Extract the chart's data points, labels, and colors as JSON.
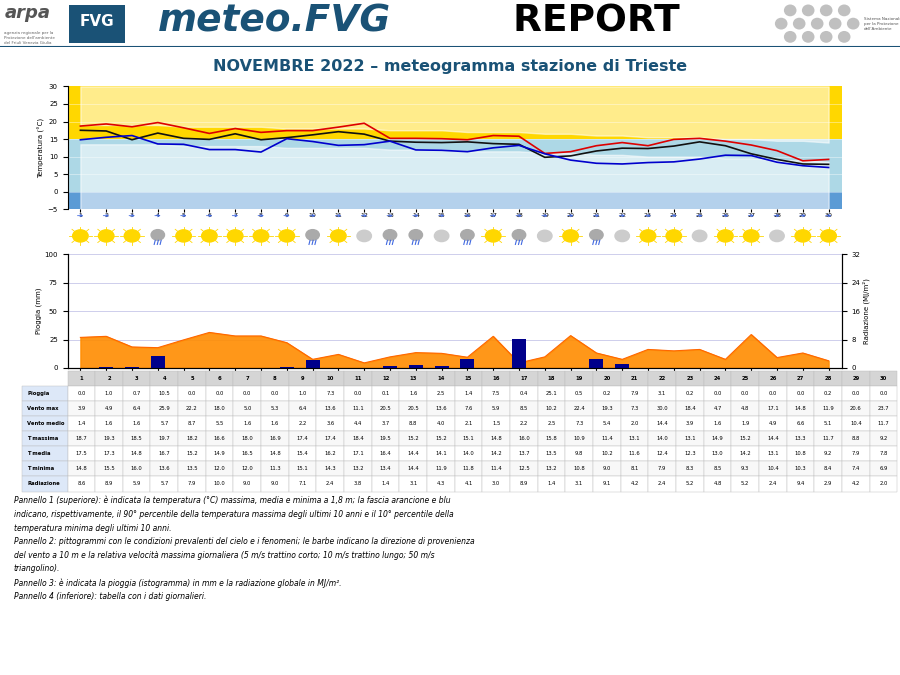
{
  "title": "NOVEMBRE 2022 – meteogramma stazione di Trieste",
  "days": [
    1,
    2,
    3,
    4,
    5,
    6,
    7,
    8,
    9,
    10,
    11,
    12,
    13,
    14,
    15,
    16,
    17,
    18,
    19,
    20,
    21,
    22,
    23,
    24,
    25,
    26,
    27,
    28,
    29,
    30
  ],
  "t_massima": [
    18.7,
    19.3,
    18.5,
    19.7,
    18.2,
    16.6,
    18.0,
    16.9,
    17.4,
    17.4,
    18.4,
    19.5,
    15.2,
    15.2,
    15.1,
    14.8,
    16.0,
    15.8,
    10.9,
    11.4,
    13.1,
    14.0,
    13.1,
    14.9,
    15.2,
    14.4,
    13.3,
    11.7,
    8.8,
    9.2
  ],
  "t_media": [
    17.5,
    17.3,
    14.8,
    16.7,
    15.2,
    14.9,
    16.5,
    14.8,
    15.4,
    16.2,
    17.1,
    16.4,
    14.4,
    14.1,
    14.0,
    14.2,
    13.7,
    13.5,
    9.8,
    10.2,
    11.6,
    12.4,
    12.3,
    13.0,
    14.2,
    13.1,
    10.8,
    9.2,
    7.9,
    7.8
  ],
  "t_minima": [
    14.8,
    15.5,
    16.0,
    13.6,
    13.5,
    12.0,
    12.0,
    11.3,
    15.1,
    14.3,
    13.2,
    13.4,
    14.4,
    11.9,
    11.8,
    11.4,
    12.5,
    13.2,
    10.8,
    9.0,
    8.1,
    7.9,
    8.3,
    8.5,
    9.3,
    10.4,
    10.3,
    8.4,
    7.4,
    6.9
  ],
  "t_max_clim": [
    19.0,
    19.0,
    19.0,
    19.0,
    18.5,
    18.5,
    18.5,
    18.5,
    18.0,
    18.0,
    18.0,
    18.0,
    17.5,
    17.5,
    17.5,
    17.0,
    17.0,
    17.0,
    16.5,
    16.5,
    16.0,
    16.0,
    15.5,
    15.5,
    15.5,
    15.0,
    15.0,
    14.5,
    14.5,
    14.0
  ],
  "t_min_clim": [
    13.5,
    13.5,
    13.5,
    13.5,
    13.0,
    13.0,
    13.0,
    13.0,
    12.5,
    12.5,
    12.5,
    12.5,
    12.0,
    12.0,
    12.0,
    11.5,
    11.5,
    11.5,
    11.0,
    11.0,
    10.5,
    10.5,
    10.0,
    10.0,
    10.0,
    9.5,
    9.5,
    9.0,
    9.0,
    8.5
  ],
  "rain": [
    0.0,
    1.0,
    0.7,
    10.5,
    0.0,
    0.0,
    0.0,
    0.0,
    1.0,
    7.3,
    0.0,
    0.1,
    1.6,
    2.5,
    1.4,
    7.5,
    0.4,
    25.1,
    0.5,
    0.2,
    7.9,
    3.1,
    0.2,
    0.0,
    0.0,
    0.0,
    0.0,
    0.2,
    0.0,
    0.0
  ],
  "radiation": [
    8.6,
    8.9,
    5.9,
    5.7,
    7.9,
    10.0,
    9.0,
    9.0,
    7.1,
    2.4,
    3.8,
    1.4,
    3.1,
    4.3,
    4.1,
    3.0,
    8.9,
    1.4,
    3.1,
    9.1,
    4.2,
    2.4,
    5.2,
    4.8,
    5.2,
    2.4,
    9.4,
    2.9,
    4.2,
    2.0
  ],
  "bg_yellow": "#FFD700",
  "bg_lightblue": "#add8e6",
  "bg_blue": "#5b9bd5",
  "line_red": "#DD0000",
  "line_black": "#111111",
  "line_blue": "#0000CC",
  "orange_fill": "#FF8C00",
  "blue_bar": "#00008B",
  "pioggia_row": [
    "0.0",
    "1.0",
    "0.7",
    "10.5",
    "0.0",
    "0.0",
    "0.0",
    "0.0",
    "1.0",
    "7.3",
    "0.0",
    "0.1",
    "1.6",
    "2.5",
    "1.4",
    "7.5",
    "0.4",
    "25.1",
    "0.5",
    "0.2",
    "7.9",
    "3.1",
    "0.2",
    "0.0",
    "0.0",
    "0.0",
    "0.0",
    "0.2",
    "0.0",
    "0.0"
  ],
  "vento_max_row": [
    "3.9",
    "4.9",
    "6.4",
    "25.9",
    "22.2",
    "18.0",
    "5.0",
    "5.3",
    "6.4",
    "13.6",
    "11.1",
    "20.5",
    "20.5",
    "13.6",
    "7.6",
    "5.9",
    "8.5",
    "10.2",
    "22.4",
    "19.3",
    "7.3",
    "30.0",
    "18.4",
    "4.7",
    "4.8",
    "17.1",
    "14.8",
    "11.9",
    "20.6",
    "23.7"
  ],
  "vento_medio_row": [
    "1.4",
    "1.6",
    "1.6",
    "5.7",
    "8.7",
    "5.5",
    "1.6",
    "1.6",
    "2.2",
    "3.6",
    "4.4",
    "3.7",
    "8.8",
    "4.0",
    "2.1",
    "1.5",
    "2.2",
    "2.5",
    "7.3",
    "5.4",
    "2.0",
    "14.4",
    "3.9",
    "1.6",
    "1.9",
    "4.9",
    "6.6",
    "5.1",
    "10.4",
    "11.7"
  ],
  "t_massima_row": [
    "18.7",
    "19.3",
    "18.5",
    "19.7",
    "18.2",
    "16.6",
    "18.0",
    "16.9",
    "17.4",
    "17.4",
    "18.4",
    "19.5",
    "15.2",
    "15.2",
    "15.1",
    "14.8",
    "16.0",
    "15.8",
    "10.9",
    "11.4",
    "13.1",
    "14.0",
    "13.1",
    "14.9",
    "15.2",
    "14.4",
    "13.3",
    "11.7",
    "8.8",
    "9.2"
  ],
  "t_media_row": [
    "17.5",
    "17.3",
    "14.8",
    "16.7",
    "15.2",
    "14.9",
    "16.5",
    "14.8",
    "15.4",
    "16.2",
    "17.1",
    "16.4",
    "14.4",
    "14.1",
    "14.0",
    "14.2",
    "13.7",
    "13.5",
    "9.8",
    "10.2",
    "11.6",
    "12.4",
    "12.3",
    "13.0",
    "14.2",
    "13.1",
    "10.8",
    "9.2",
    "7.9",
    "7.8"
  ],
  "t_minima_row": [
    "14.8",
    "15.5",
    "16.0",
    "13.6",
    "13.5",
    "12.0",
    "12.0",
    "11.3",
    "15.1",
    "14.3",
    "13.2",
    "13.4",
    "14.4",
    "11.9",
    "11.8",
    "11.4",
    "12.5",
    "13.2",
    "10.8",
    "9.0",
    "8.1",
    "7.9",
    "8.3",
    "8.5",
    "9.3",
    "10.4",
    "10.3",
    "8.4",
    "7.4",
    "6.9"
  ],
  "radiazione_row": [
    "8.6",
    "8.9",
    "5.9",
    "5.7",
    "7.9",
    "10.0",
    "9.0",
    "9.0",
    "7.1",
    "2.4",
    "3.8",
    "1.4",
    "3.1",
    "4.3",
    "4.1",
    "3.0",
    "8.9",
    "1.4",
    "3.1",
    "9.1",
    "4.2",
    "2.4",
    "5.2",
    "4.8",
    "5.2",
    "2.4",
    "9.4",
    "2.9",
    "4.2",
    "2.0"
  ],
  "bottom_text": "Pannello 1 (superiore): è indicata la temperatura (°C) massima, media e minima a 1,8 m; la fascia arancione e blu\nindicano, rispettivamente, il 90° percentile della temperatura massima degli ultimi 10 anni e il 10° percentile della\ntemperatura minima degli ultimi 10 anni.\nPannello 2: pittogrammi con le condizioni prevalenti del cielo e i fenomeni; le barbe indicano la direzione di provenienza\ndel vento a 10 m e la relativa velocità massima giornaliera (5 m/s trattino corto; 10 m/s trattino lungo; 50 m/s\ntriangolino).\nPannello 3: è indicata la pioggia (istogramma) in mm e la radiazione globale in MJ/m².\nPannello 4 (inferiore): tabella con i dati giornalieri."
}
